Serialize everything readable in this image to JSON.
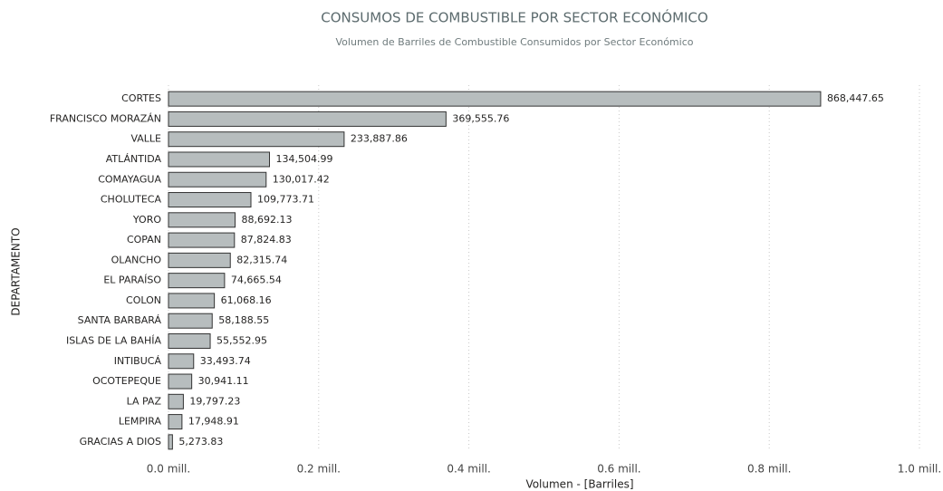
{
  "chart_data": {
    "type": "bar",
    "orientation": "horizontal",
    "title": "CONSUMOS DE COMBUSTIBLE POR SECTOR ECONÓMICO",
    "subtitle": "Volumen de Barriles de Combustible Consumidos por Sector Económico",
    "x_label": "Volumen - [Barriles]",
    "y_label": "DEPARTAMENTO",
    "categories": [
      "CORTES",
      "FRANCISCO MORAZÁN",
      "VALLE",
      "ATLÁNTIDA",
      "COMAYAGUA",
      "CHOLUTECA",
      "YORO",
      "COPAN",
      "OLANCHO",
      "EL PARAÍSO",
      "COLON",
      "SANTA BARBARÁ",
      "ISLAS DE LA BAHÍA",
      "INTIBUCÁ",
      "OCOTEPEQUE",
      "LA PAZ",
      "LEMPIRA",
      "GRACIAS A DIOS"
    ],
    "values": [
      868447.65,
      369555.76,
      233887.86,
      134504.99,
      130017.42,
      109773.71,
      88692.13,
      87824.83,
      82315.74,
      74665.54,
      61068.16,
      58188.55,
      55552.95,
      33493.74,
      30941.11,
      19797.23,
      17948.91,
      5273.83
    ],
    "value_labels": [
      "868,447.65",
      "369,555.76",
      "233,887.86",
      "134,504.99",
      "130,017.42",
      "109,773.71",
      "88,692.13",
      "87,824.83",
      "82,315.74",
      "74,665.54",
      "61,068.16",
      "58,188.55",
      "55,552.95",
      "33,493.74",
      "30,941.11",
      "19,797.23",
      "17,948.91",
      "5,273.83"
    ],
    "color": "#b7bdbe",
    "xlim": [
      0,
      1000000
    ],
    "xticks": [
      {
        "value": 0,
        "label": "0.0 mill."
      },
      {
        "value": 200000,
        "label": "0.2 mill."
      },
      {
        "value": 400000,
        "label": "0.4 mill."
      },
      {
        "value": 600000,
        "label": "0.6 mill."
      },
      {
        "value": 800000,
        "label": "0.8 mill."
      },
      {
        "value": 1000000,
        "label": "1.0 mill."
      }
    ],
    "grid": true
  }
}
